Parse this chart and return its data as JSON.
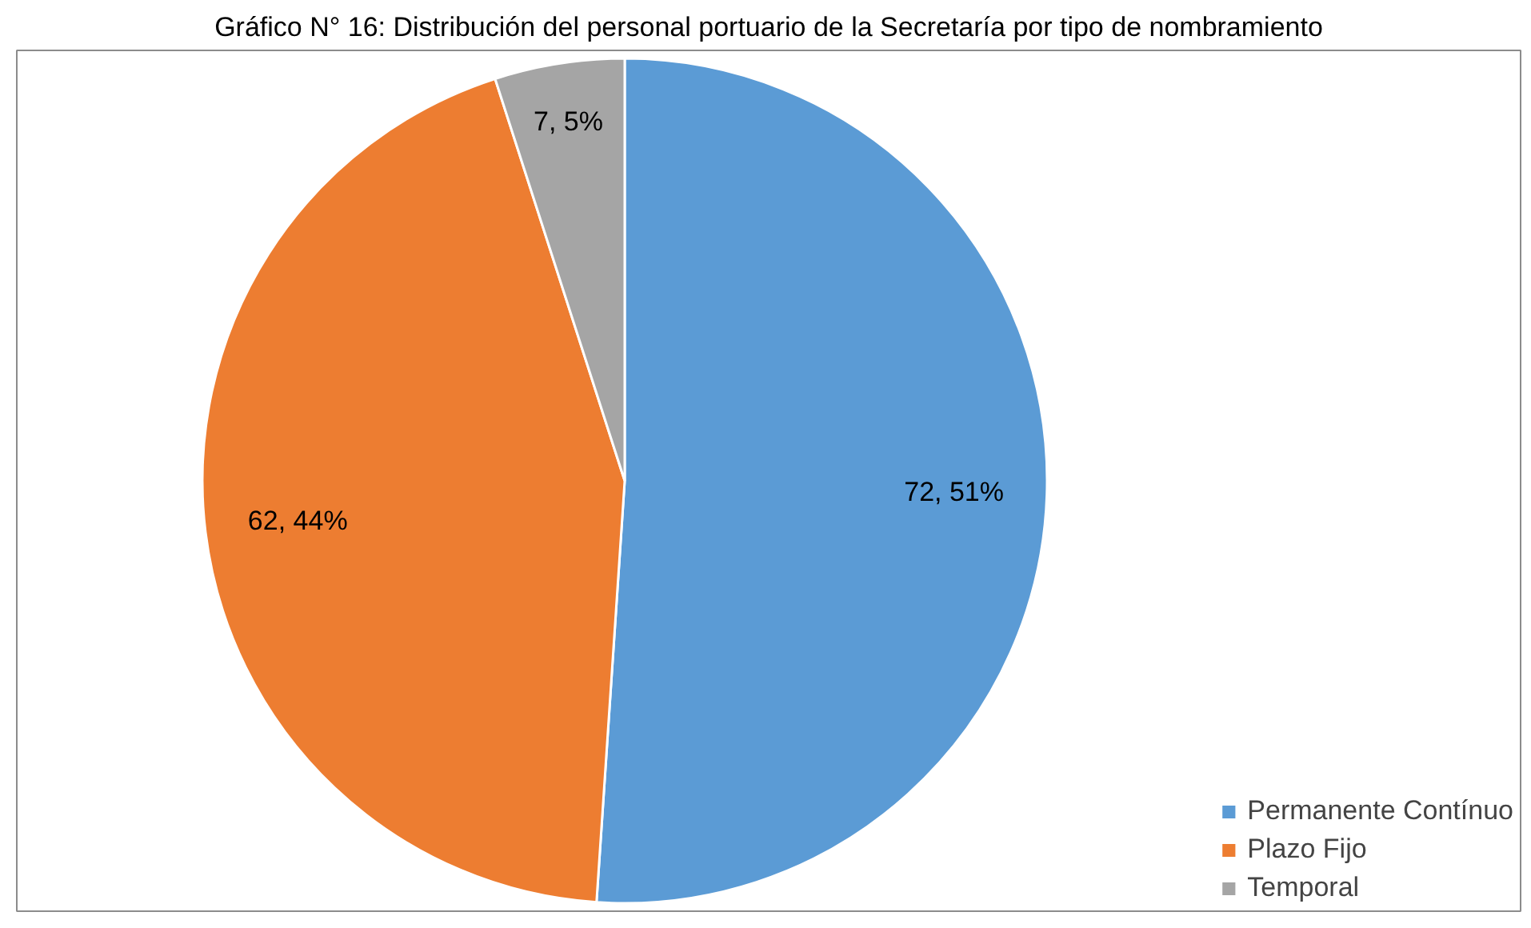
{
  "chart_data": {
    "type": "pie",
    "title": "Gráfico N° 16: Distribución del personal portuario de la Secretaría por tipo de nombramiento",
    "categories": [
      "Permanente Contínuo",
      "Plazo Fijo",
      "Temporal"
    ],
    "values": [
      72,
      62,
      7
    ],
    "colors": [
      "#5b9bd5",
      "#ed7d31",
      "#a5a5a5"
    ],
    "value_labels": [
      "72, 51%",
      "62, 44%",
      "7, 5%"
    ],
    "legend": "bottom right"
  }
}
